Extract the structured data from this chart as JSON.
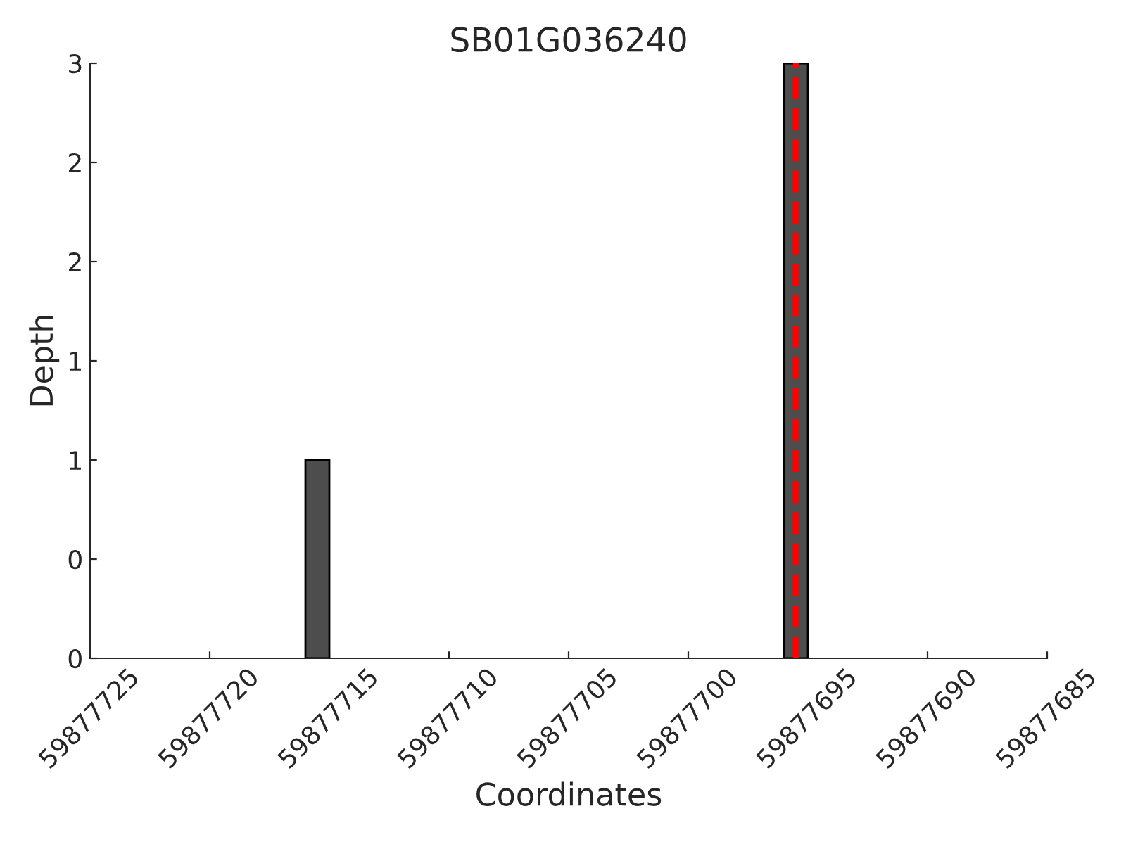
{
  "chart_data": {
    "type": "histogram",
    "title": "SB01G036240",
    "xlabel": "Coordinates",
    "ylabel": "Depth",
    "bins": [
      59877685,
      59877686,
      59877687,
      59877688,
      59877689,
      59877690,
      59877691,
      59877692,
      59877693,
      59877694,
      59877695,
      59877696,
      59877697,
      59877698,
      59877699,
      59877700,
      59877701,
      59877702,
      59877703,
      59877704,
      59877705,
      59877706,
      59877707,
      59877708,
      59877709,
      59877710,
      59877711,
      59877712,
      59877713,
      59877714,
      59877715,
      59877716,
      59877717,
      59877718,
      59877719,
      59877720,
      59877721,
      59877722,
      59877723,
      59877724,
      59877725
    ],
    "values": [
      0,
      0,
      0,
      0,
      0,
      0,
      0,
      0,
      0,
      0,
      3,
      0,
      0,
      0,
      0,
      0,
      0,
      0,
      0,
      0,
      0,
      0,
      0,
      0,
      0,
      0,
      0,
      0,
      0,
      0,
      1,
      0,
      0,
      0,
      0,
      0,
      0,
      0,
      0,
      0
    ],
    "color": "#4d4d4d",
    "xlim": [
      59877725,
      59877685
    ],
    "xticks": [
      59877725,
      59877720,
      59877715,
      59877710,
      59877705,
      59877700,
      59877695,
      59877690,
      59877685
    ],
    "ylim": [
      0,
      3
    ],
    "yticks": [
      0,
      {
        "value": 0.5,
        "label": "0"
      },
      1,
      {
        "value": 1.5,
        "label": "1"
      },
      2,
      {
        "value": 2.5,
        "label": "2"
      },
      3
    ],
    "ref_lines": [
      {
        "axis": "x",
        "value": 59877695.5,
        "color": "#ff0000",
        "line_style": "dashed"
      }
    ],
    "grid": false
  }
}
